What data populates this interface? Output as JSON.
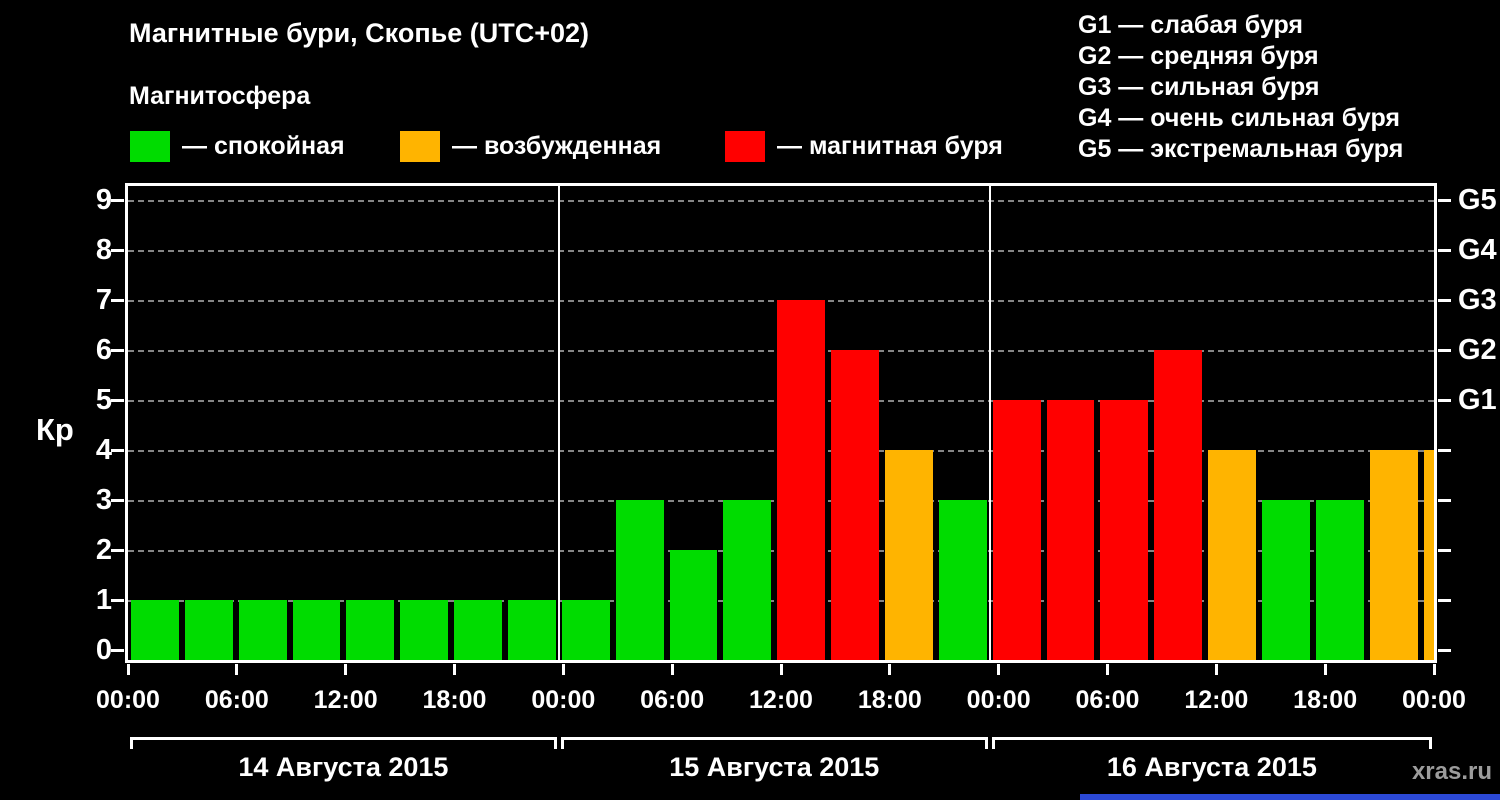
{
  "title": "Магнитные бури, Скопье (UTC+02)",
  "legend": {
    "heading": "Магнитосфера",
    "items": [
      {
        "label": "— спокойная",
        "color": "#00dc00"
      },
      {
        "label": "— возбужденная",
        "color": "#ffb400"
      },
      {
        "label": "— магнитная буря",
        "color": "#ff0000"
      }
    ]
  },
  "g_legend": [
    "G1 — слабая буря",
    "G2 — средняя буря",
    "G3 — сильная буря",
    "G4 — очень сильная буря",
    "G5 — экстремальная буря"
  ],
  "watermark": "xras.ru",
  "chart_data": {
    "type": "bar",
    "title": "Магнитные бури, Скопье (UTC+02)",
    "ylabel": "Кр",
    "ylim": [
      0,
      9.5
    ],
    "yticks": [
      0,
      1,
      2,
      3,
      4,
      5,
      6,
      7,
      8,
      9
    ],
    "interval_hours": 3,
    "x_tick_labels": [
      "00:00",
      "06:00",
      "12:00",
      "18:00",
      "00:00",
      "06:00",
      "12:00",
      "18:00",
      "00:00",
      "06:00",
      "12:00",
      "18:00",
      "00:00"
    ],
    "days": [
      {
        "date": "14 Августа 2015",
        "kp": [
          1,
          1,
          1,
          1,
          1,
          1,
          1,
          1
        ]
      },
      {
        "date": "15 Августа 2015",
        "kp": [
          1,
          3,
          2,
          3,
          7,
          6,
          4,
          3
        ]
      },
      {
        "date": "16 Августа 2015",
        "kp": [
          5,
          5,
          5,
          6,
          4,
          3,
          3,
          4
        ]
      }
    ],
    "next_day_partial_kp": 4,
    "right_axis": [
      {
        "value": 5,
        "label": "G1"
      },
      {
        "value": 6,
        "label": "G2"
      },
      {
        "value": 7,
        "label": "G3"
      },
      {
        "value": 8,
        "label": "G4"
      },
      {
        "value": 9,
        "label": "G5"
      }
    ],
    "colors": {
      "quiet": "#00dc00",
      "excited": "#ffb400",
      "storm": "#ff0000"
    },
    "color_rule": {
      "quiet_max_kp": 3,
      "excited_max_kp": 4
    },
    "grid": "horizontal-dashed",
    "legend_position": "top-left"
  }
}
